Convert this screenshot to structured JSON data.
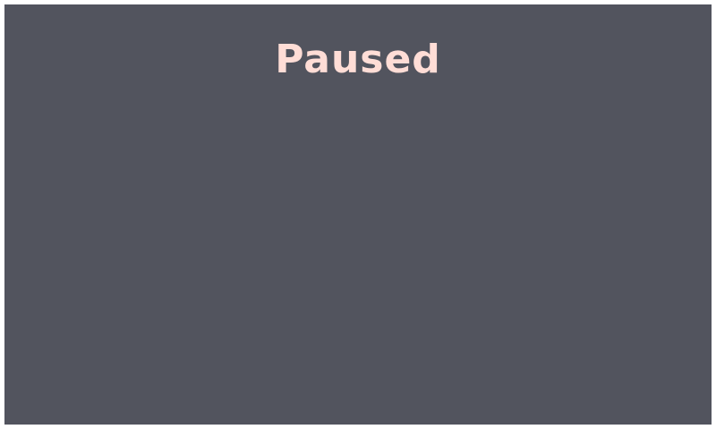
{
  "game": {
    "pause_overlay": {
      "title": "Paused"
    }
  },
  "colors": {
    "background": "#52545e",
    "title": "#ffddd6",
    "border": "#ffffff"
  }
}
